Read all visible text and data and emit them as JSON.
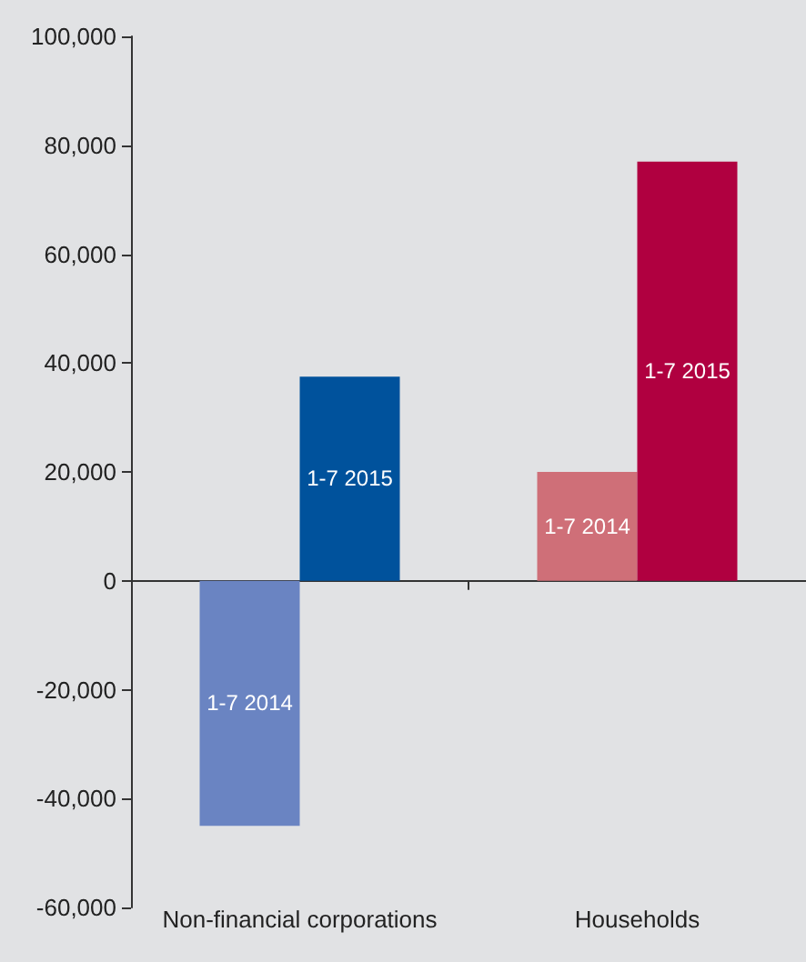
{
  "chart_data": {
    "type": "bar",
    "categories": [
      "Non-financial corporations",
      "Households"
    ],
    "series": [
      {
        "name": "1-7 2014",
        "colors": [
          "#6a84c2",
          "#cf6f78"
        ],
        "values": [
          -45000,
          20000
        ]
      },
      {
        "name": "1-7 2015",
        "colors": [
          "#00529c",
          "#b00040"
        ],
        "values": [
          37500,
          77000
        ]
      }
    ],
    "ylim": [
      -60000,
      100000
    ],
    "yticks": [
      {
        "value": -60000,
        "label": "-60,000"
      },
      {
        "value": -40000,
        "label": "-40,000"
      },
      {
        "value": -20000,
        "label": "-20,000"
      },
      0,
      {
        "value": 20000,
        "label": "20,000"
      },
      {
        "value": 40000,
        "label": "40,000"
      },
      {
        "value": 60000,
        "label": "60,000"
      },
      {
        "value": 80000,
        "label": "80,000"
      },
      {
        "value": 100000,
        "label": "100,000"
      }
    ],
    "legend": false
  }
}
